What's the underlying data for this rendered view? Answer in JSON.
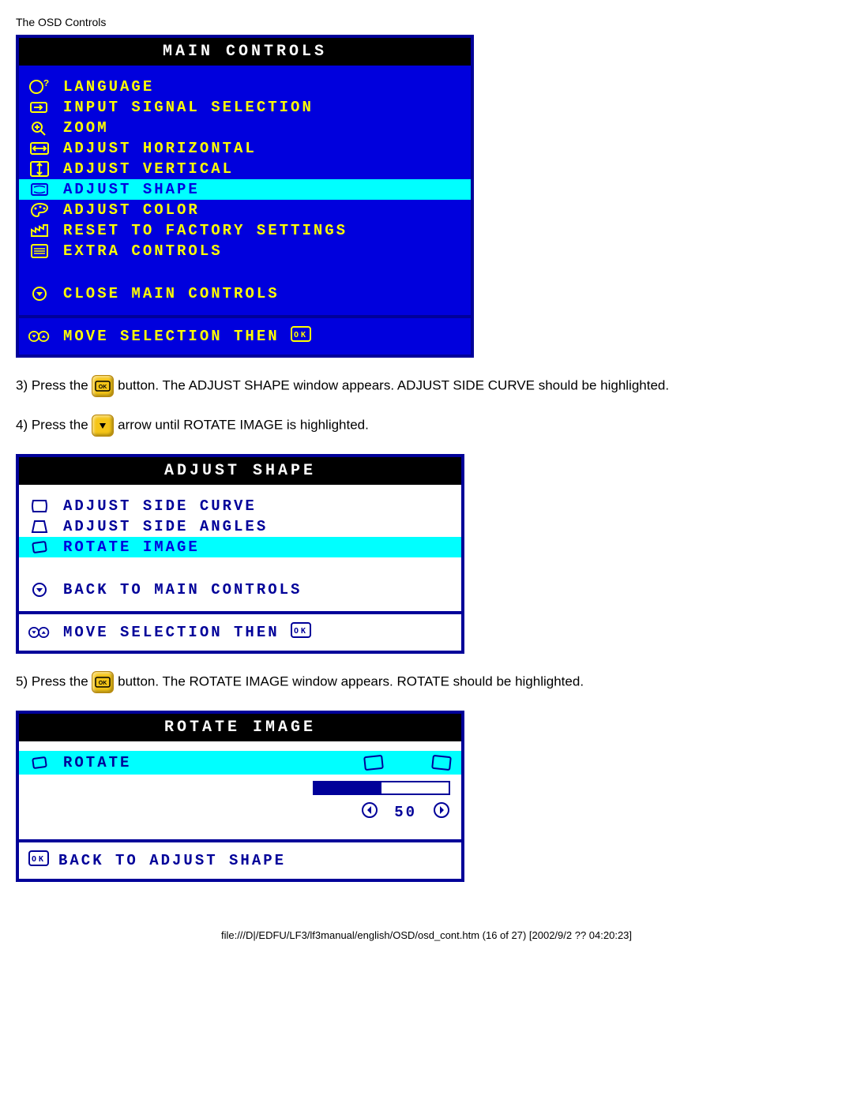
{
  "page_header": "The OSD Controls",
  "main_controls": {
    "title": "MAIN CONTROLS",
    "bg_color": "#0000dd",
    "text_color": "#ffff00",
    "highlight_bg": "#00ffff",
    "highlight_text": "#0000dd",
    "items": [
      {
        "icon": "globe-question",
        "label": "LANGUAGE",
        "highlighted": false
      },
      {
        "icon": "input-arrow",
        "label": "INPUT SIGNAL SELECTION",
        "highlighted": false
      },
      {
        "icon": "magnifier",
        "label": "ZOOM",
        "highlighted": false
      },
      {
        "icon": "arrows-h",
        "label": "ADJUST HORIZONTAL",
        "highlighted": false
      },
      {
        "icon": "arrows-v",
        "label": "ADJUST VERTICAL",
        "highlighted": false
      },
      {
        "icon": "shape",
        "label": "ADJUST SHAPE",
        "highlighted": true
      },
      {
        "icon": "palette",
        "label": "ADJUST COLOR",
        "highlighted": false
      },
      {
        "icon": "factory",
        "label": "RESET TO FACTORY SETTINGS",
        "highlighted": false
      },
      {
        "icon": "list",
        "label": "EXTRA CONTROLS",
        "highlighted": false
      }
    ],
    "close_label": "CLOSE MAIN CONTROLS",
    "footer_label": "MOVE SELECTION THEN"
  },
  "instruction3_a": "3) Press the ",
  "instruction3_b": " button. The ADJUST SHAPE window appears. ADJUST SIDE CURVE should be highlighted.",
  "instruction4_a": "4) Press the ",
  "instruction4_b": " arrow until ROTATE IMAGE is highlighted.",
  "adjust_shape": {
    "title": "ADJUST SHAPE",
    "items": [
      {
        "icon": "side-curve",
        "label": "ADJUST SIDE CURVE",
        "highlighted": false
      },
      {
        "icon": "side-angles",
        "label": "ADJUST SIDE ANGLES",
        "highlighted": false
      },
      {
        "icon": "rotate",
        "label": "ROTATE IMAGE",
        "highlighted": true
      }
    ],
    "back_label": "BACK TO MAIN CONTROLS",
    "footer_label": "MOVE SELECTION THEN"
  },
  "instruction5_a": "5) Press the ",
  "instruction5_b": " button. The ROTATE IMAGE window appears. ROTATE should be highlighted.",
  "rotate_image": {
    "title": "ROTATE IMAGE",
    "rotate_label": "ROTATE",
    "value": "50",
    "bar_percent": 50,
    "back_label": "BACK TO ADJUST SHAPE"
  },
  "footer_text": "file:///D|/EDFU/LF3/lf3manual/english/OSD/osd_cont.htm (16 of 27) [2002/9/2 ?? 04:20:23]",
  "ok_glyph": "OK",
  "down_glyph": "▼"
}
